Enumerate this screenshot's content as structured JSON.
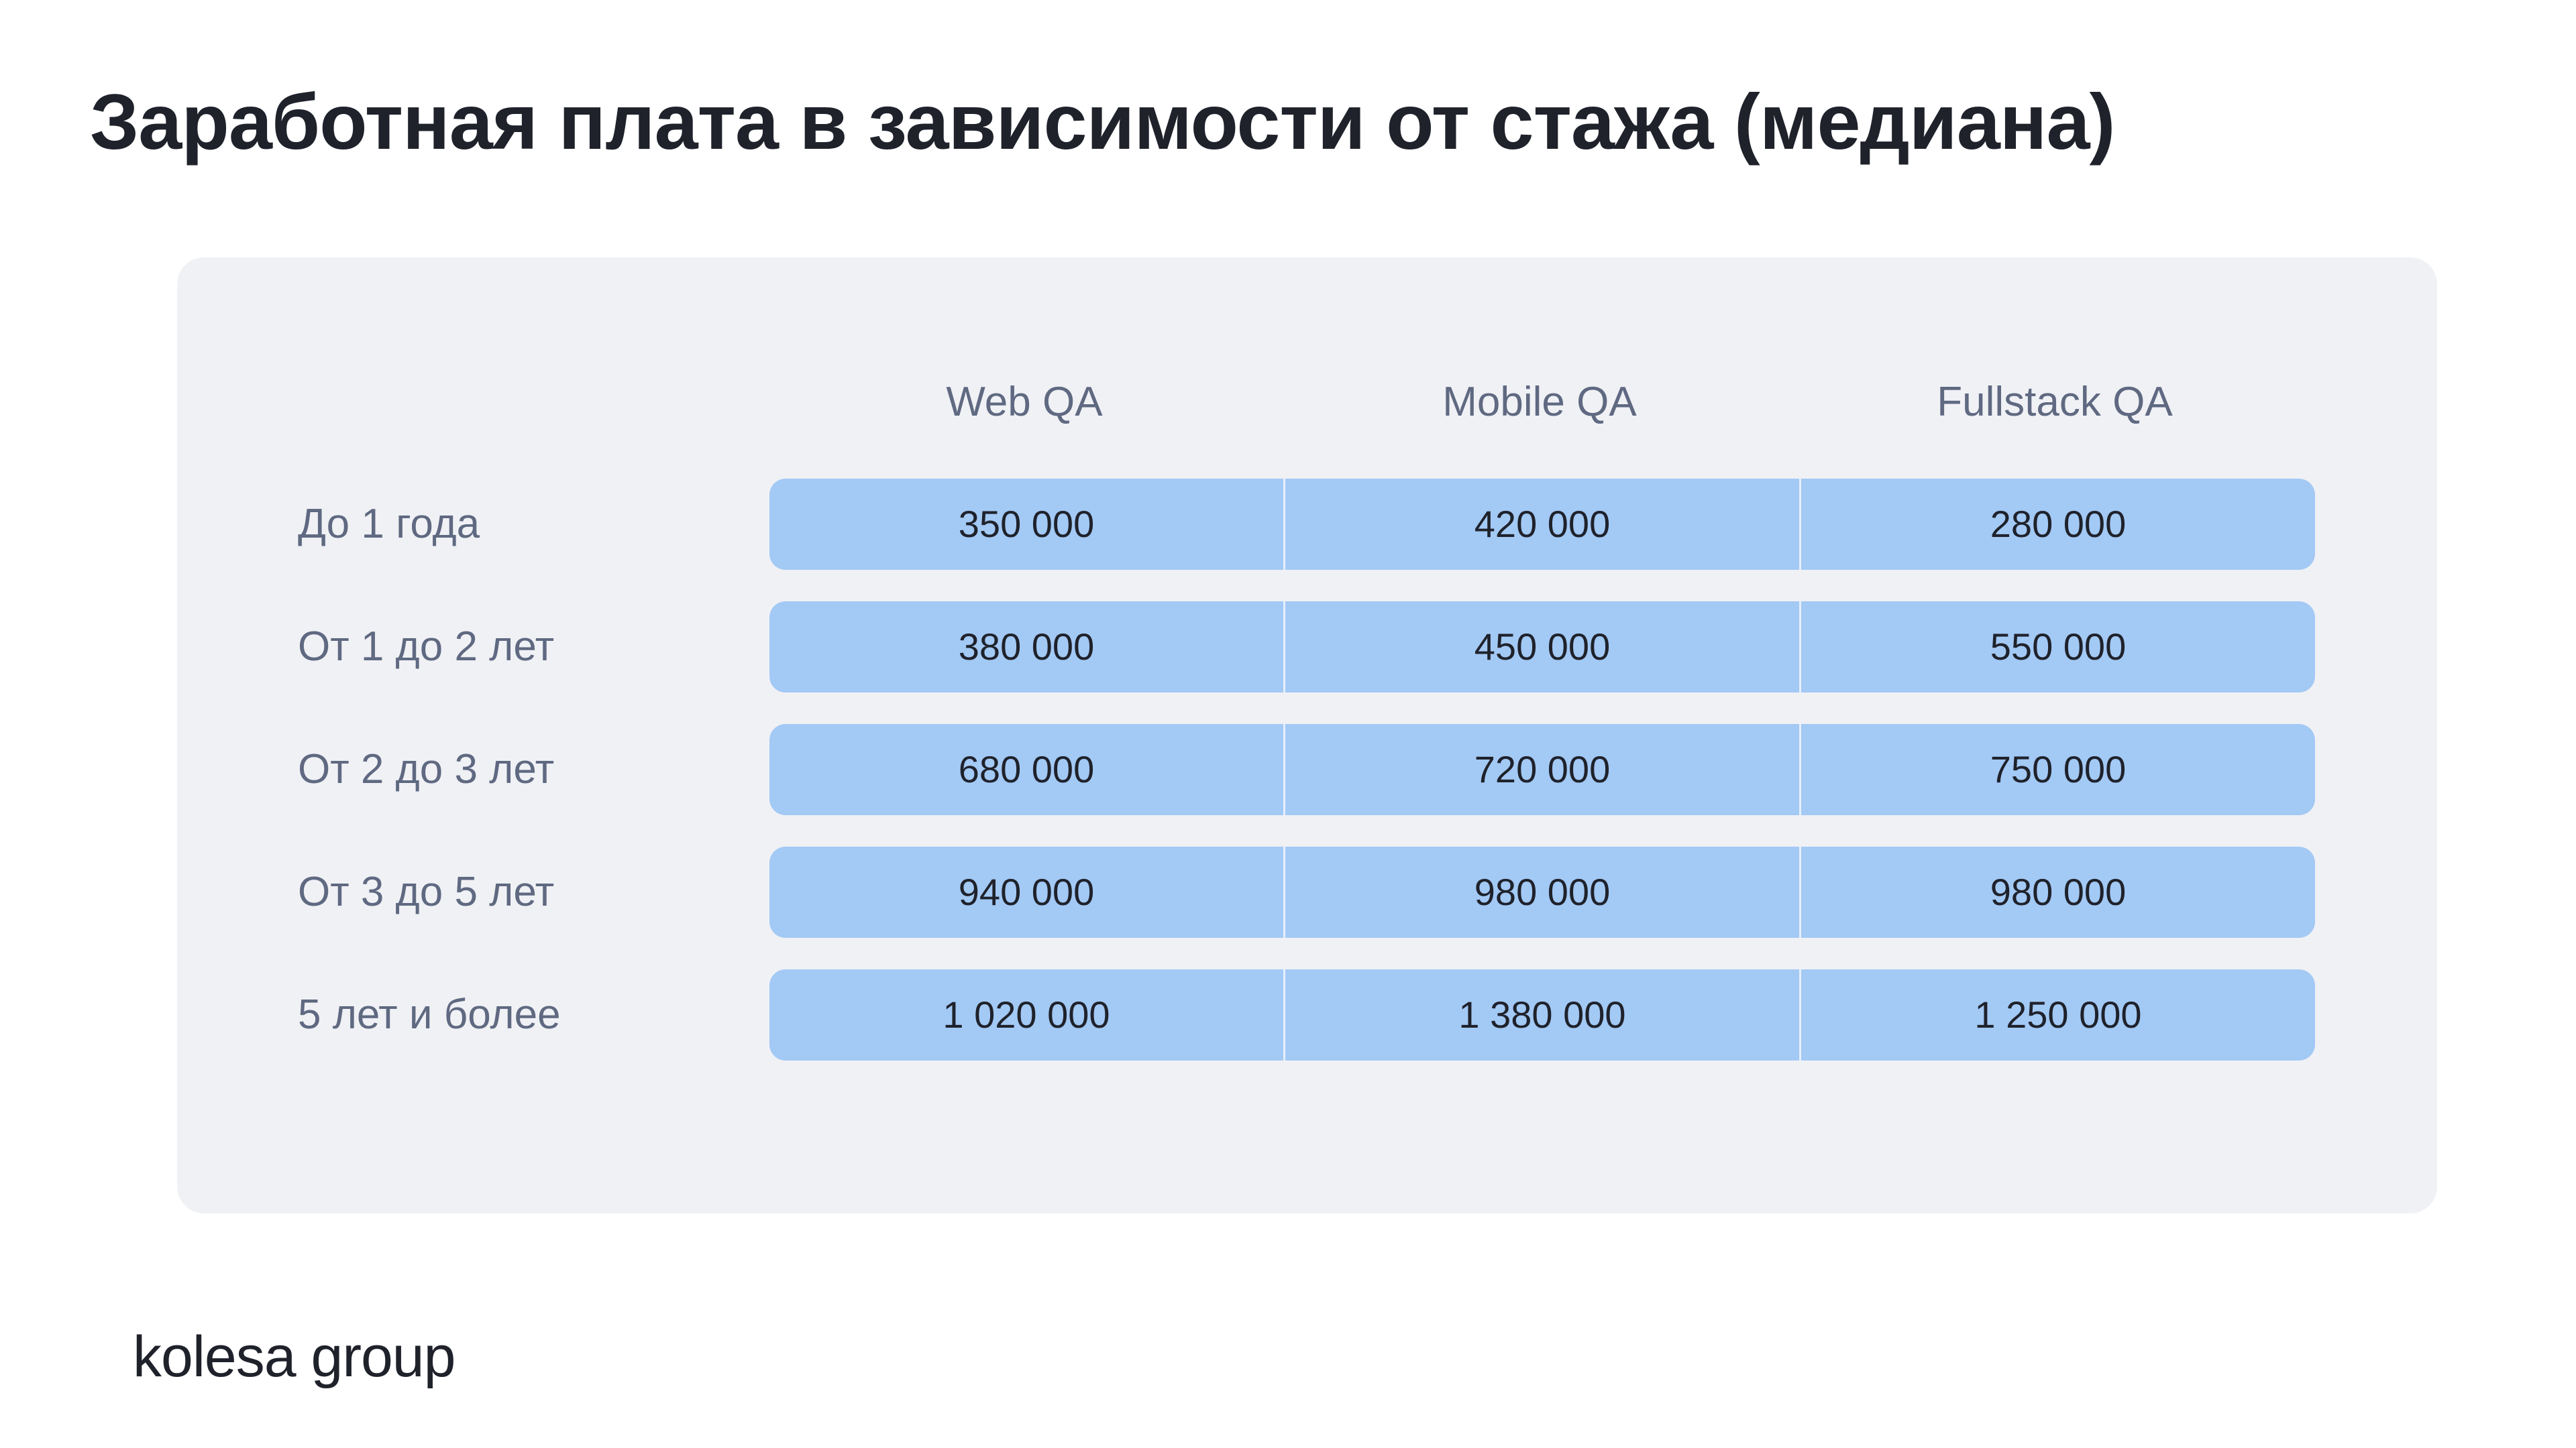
{
  "title": "Заработная плата в зависимости от стажа (медиана)",
  "logo_text": "kolesa group",
  "colors": {
    "title": "#1f222b",
    "card_background": "#f0f1f5",
    "bar": "#a3c9f5",
    "label": "#5f6981"
  },
  "chart_data": {
    "type": "table",
    "title": "Заработная плата в зависимости от стажа (медиана)",
    "columns": [
      "Web QA",
      "Mobile QA",
      "Fullstack QA"
    ],
    "rows": [
      {
        "label": "До 1 года",
        "values": [
          "350 000",
          "420 000",
          "280 000"
        ]
      },
      {
        "label": "От 1 до 2 лет",
        "values": [
          "380 000",
          "450 000",
          "550 000"
        ]
      },
      {
        "label": "От 2 до 3 лет",
        "values": [
          "680 000",
          "720 000",
          "750 000"
        ]
      },
      {
        "label": "От 3 до 5 лет",
        "values": [
          "940 000",
          "980 000",
          "980 000"
        ]
      },
      {
        "label": "5 лет и более",
        "values": [
          "1 020 000",
          "1 380 000",
          "1 250 000"
        ]
      }
    ]
  }
}
